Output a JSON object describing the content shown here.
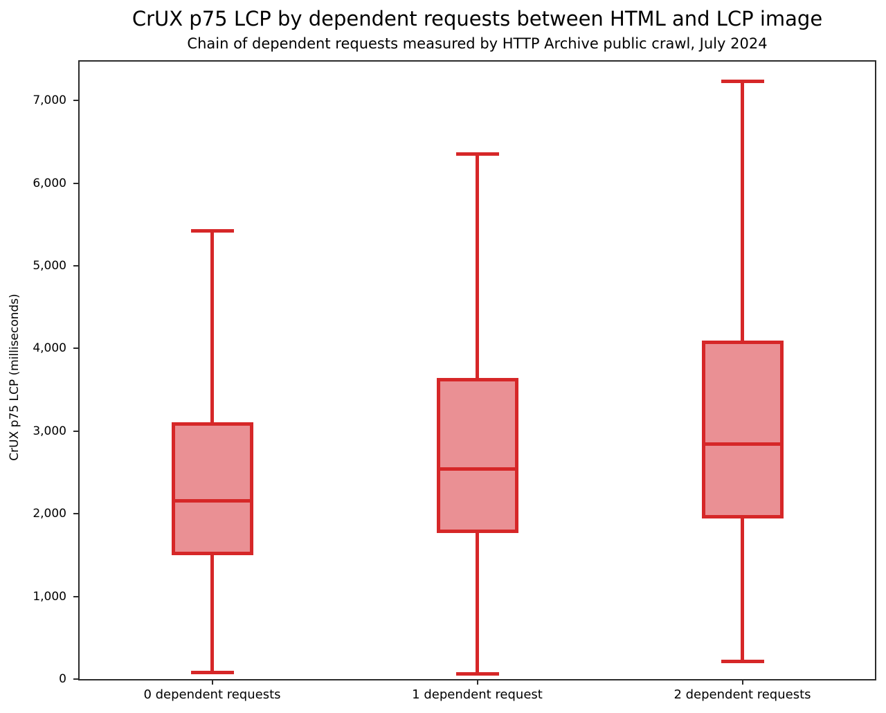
{
  "chart_data": {
    "type": "boxplot",
    "title": "CrUX p75 LCP by dependent requests between HTML and LCP image",
    "subtitle": "Chain of dependent requests measured by HTTP Archive public crawl, July 2024",
    "ylabel": "CrUX p75 LCP (milliseconds)",
    "xlabel": "",
    "ylim": [
      0,
      7470
    ],
    "grid": false,
    "legend": "none",
    "y_ticks": [
      {
        "value": 0,
        "label": "0"
      },
      {
        "value": 1000,
        "label": "1,000"
      },
      {
        "value": 2000,
        "label": "2,000"
      },
      {
        "value": 3000,
        "label": "3,000"
      },
      {
        "value": 4000,
        "label": "4,000"
      },
      {
        "value": 5000,
        "label": "5,000"
      },
      {
        "value": 6000,
        "label": "6,000"
      },
      {
        "value": 7000,
        "label": "7,000"
      }
    ],
    "categories": [
      "0 dependent requests",
      "1 dependent request",
      "2 dependent requests"
    ],
    "series": [
      {
        "category": "0 dependent requests",
        "whisker_low": 80,
        "q1": 1520,
        "median": 2160,
        "q3": 3090,
        "whisker_high": 5420
      },
      {
        "category": "1 dependent request",
        "whisker_low": 60,
        "q1": 1790,
        "median": 2540,
        "q3": 3620,
        "whisker_high": 6350
      },
      {
        "category": "2 dependent requests",
        "whisker_low": 210,
        "q1": 1960,
        "median": 2840,
        "q3": 4070,
        "whisker_high": 7230
      }
    ],
    "colors": {
      "box_fill": "#ea9094",
      "box_edge": "#d62728",
      "whisker": "#d62728",
      "median": "#d62728",
      "spine": "#2b2b2b",
      "text": "#000000"
    }
  }
}
